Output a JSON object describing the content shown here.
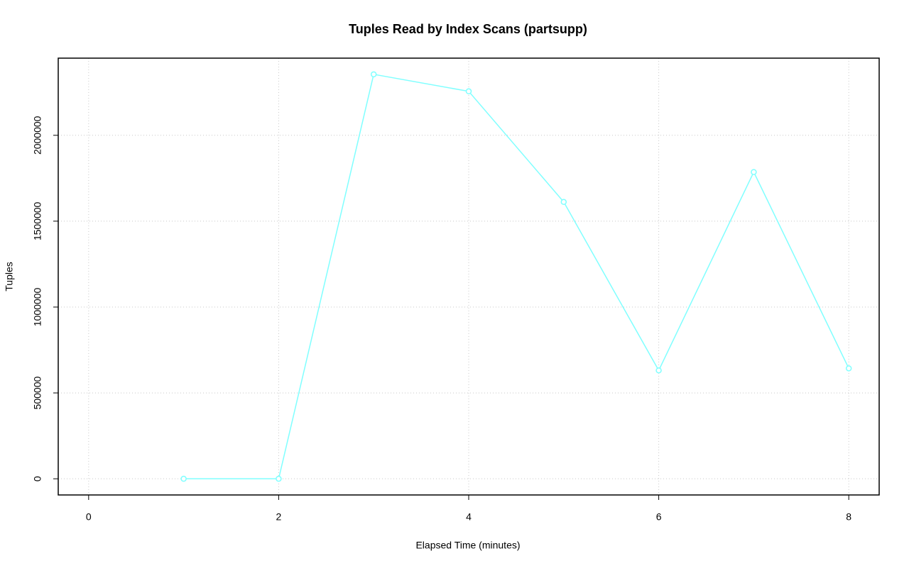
{
  "chart_data": {
    "type": "line",
    "title": "Tuples Read by Index Scans (partsupp)",
    "x_label": "Elapsed Time (minutes)",
    "y_label": "Tuples",
    "x": [
      1,
      2,
      3,
      4,
      5,
      6,
      7,
      8
    ],
    "values": [
      0,
      0,
      2355000,
      2256000,
      1612000,
      631000,
      1786000,
      643000
    ],
    "color": "#80ffff",
    "xlim": [
      -0.32,
      8.32
    ],
    "xticks": [
      0,
      2,
      4,
      6,
      8
    ],
    "ylim": [
      -94200,
      2449200
    ],
    "yticks": [
      0,
      500000,
      1000000,
      1500000,
      2000000
    ],
    "grid": true
  }
}
